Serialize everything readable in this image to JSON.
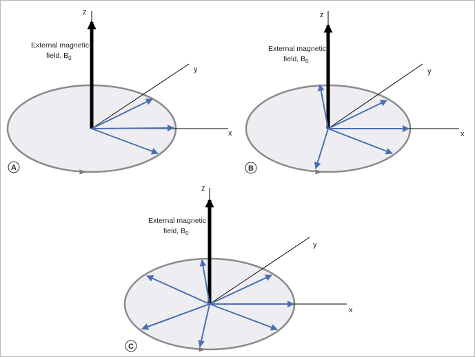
{
  "colors": {
    "disc_fill": "#eeeef2",
    "disc_stroke": "#8a8a8a",
    "spin_vector": "#4a6fae",
    "field_vector": "#000000",
    "axis": "#000000",
    "rotation_arrow": "#7a7a7a"
  },
  "labels": {
    "z_axis": "z",
    "y_axis": "y",
    "x_axis": "x",
    "field_line1": "External magnetic",
    "field_line2": "field, B",
    "field_subscript": "0"
  },
  "panels": [
    {
      "id": "A",
      "label": "A",
      "spin_count": 3
    },
    {
      "id": "B",
      "label": "B",
      "spin_count": 5
    },
    {
      "id": "C",
      "label": "C",
      "spin_count": 7
    }
  ]
}
